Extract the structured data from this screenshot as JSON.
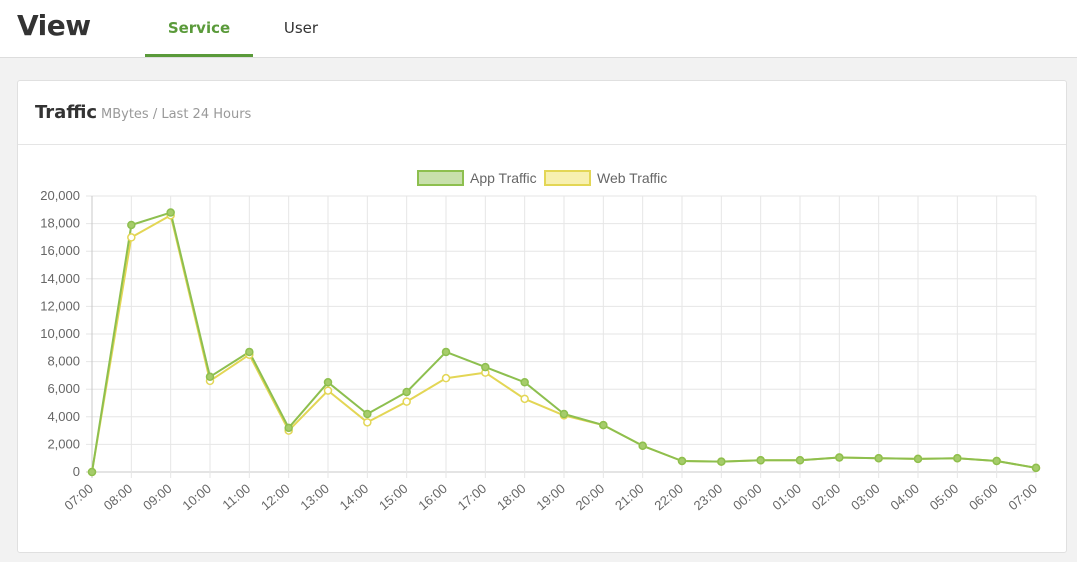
{
  "header": {
    "title": "View",
    "tabs": [
      {
        "label": "Service",
        "active": true
      },
      {
        "label": "User",
        "active": false
      }
    ]
  },
  "panel": {
    "title": "Traffic",
    "subtitle": "MBytes / Last 24 Hours"
  },
  "colors": {
    "accent": "#5a9a3a",
    "app_line": "#8dbf4f",
    "app_fill": "#c8e0ac",
    "web_line": "#e3d655",
    "web_fill": "#f7f0b0"
  },
  "chart_data": {
    "type": "line",
    "title": "",
    "xlabel": "",
    "ylabel": "",
    "ylim": [
      0,
      20000
    ],
    "yticks": [
      0,
      2000,
      4000,
      6000,
      8000,
      10000,
      12000,
      14000,
      16000,
      18000,
      20000
    ],
    "ytick_labels": [
      "0",
      "2,000",
      "4,000",
      "6,000",
      "8,000",
      "10,000",
      "12,000",
      "14,000",
      "16,000",
      "18,000",
      "20,000"
    ],
    "grid": true,
    "legend_position": "top-center",
    "x": [
      "07:00",
      "08:00",
      "09:00",
      "10:00",
      "11:00",
      "12:00",
      "13:00",
      "14:00",
      "15:00",
      "16:00",
      "17:00",
      "18:00",
      "19:00",
      "20:00",
      "21:00",
      "22:00",
      "23:00",
      "00:00",
      "01:00",
      "02:00",
      "03:00",
      "04:00",
      "05:00",
      "06:00",
      "07:00"
    ],
    "series": [
      {
        "name": "App Traffic",
        "values": [
          0,
          17900,
          18800,
          6900,
          8700,
          3200,
          6500,
          4200,
          5800,
          8700,
          7600,
          6500,
          4200,
          3400,
          1900,
          800,
          750,
          850,
          850,
          1050,
          1000,
          950,
          1000,
          800,
          300
        ]
      },
      {
        "name": "Web Traffic",
        "values": [
          0,
          17000,
          18600,
          6600,
          8500,
          3000,
          5900,
          3600,
          5100,
          6800,
          7200,
          5300,
          4100,
          3400,
          1900,
          800,
          750,
          850,
          850,
          1050,
          1000,
          950,
          1000,
          800,
          300
        ]
      }
    ]
  }
}
